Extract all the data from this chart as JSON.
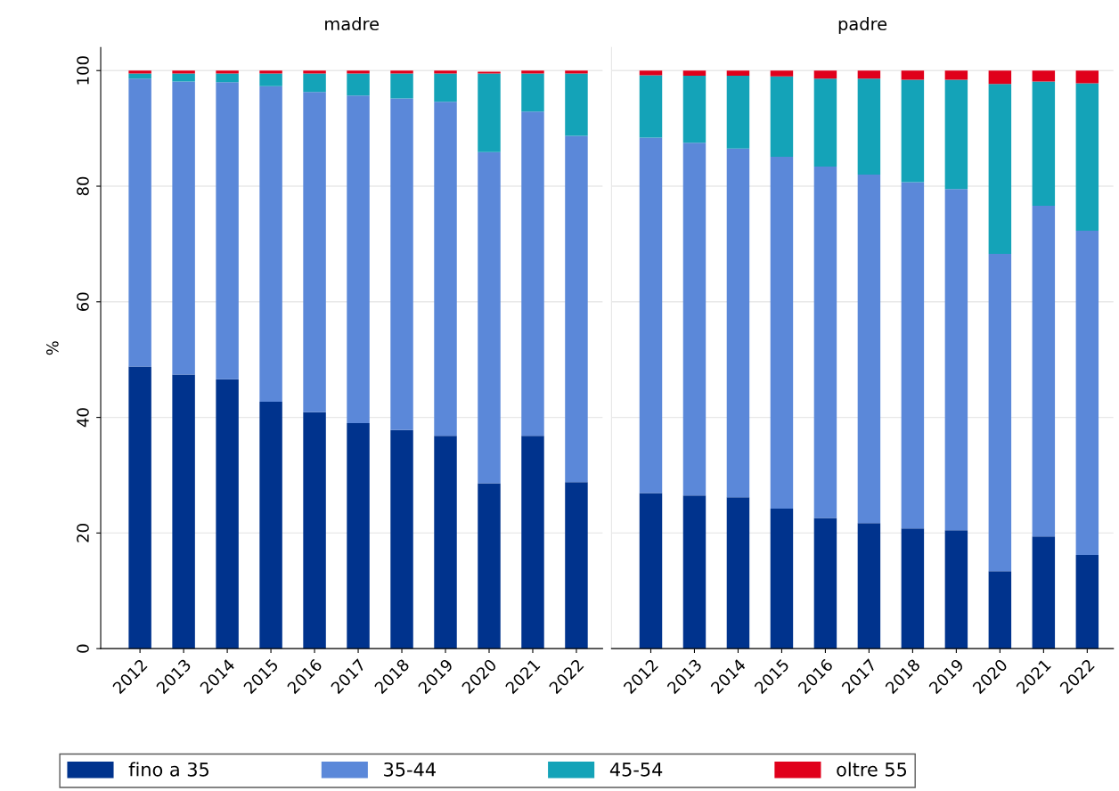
{
  "chart_data": [
    {
      "type": "bar",
      "title": "madre",
      "ylabel": "%",
      "stacked": true,
      "grid": "y",
      "legend": "bottom",
      "categories": [
        "2012",
        "2013",
        "2014",
        "2015",
        "2016",
        "2017",
        "2018",
        "2019",
        "2020",
        "2021",
        "2022"
      ],
      "ylim": [
        0,
        104
      ],
      "yticks": [
        0,
        20,
        40,
        60,
        80,
        100
      ],
      "series": [
        {
          "name": "fino a 35",
          "color": "#00338d",
          "values": [
            48.8,
            47.4,
            46.6,
            42.7,
            40.9,
            39.0,
            37.8,
            36.8,
            28.6,
            36.8,
            28.8
          ]
        },
        {
          "name": "35-44",
          "color": "#5b88d9",
          "values": [
            49.8,
            50.7,
            51.4,
            54.6,
            55.4,
            56.7,
            57.4,
            57.8,
            57.3,
            56.1,
            59.9
          ]
        },
        {
          "name": "45-54",
          "color": "#14a3b8",
          "values": [
            0.9,
            1.4,
            1.5,
            2.2,
            3.2,
            3.8,
            4.3,
            4.9,
            13.6,
            6.6,
            10.8
          ]
        },
        {
          "name": "oltre 55",
          "color": "#e0001b",
          "values": [
            0.5,
            0.5,
            0.5,
            0.5,
            0.5,
            0.5,
            0.5,
            0.5,
            0.3,
            0.5,
            0.5
          ]
        }
      ]
    },
    {
      "type": "bar",
      "title": "padre",
      "stacked": true,
      "grid": "y",
      "tick_labels": "x",
      "categories": [
        "2012",
        "2013",
        "2014",
        "2015",
        "2016",
        "2017",
        "2018",
        "2019",
        "2020",
        "2021",
        "2022"
      ],
      "ylim": [
        0,
        104
      ],
      "yticks": [
        0,
        20,
        40,
        60,
        80,
        100
      ],
      "series": [
        {
          "color": "#00338d",
          "values": [
            26.9,
            26.5,
            26.2,
            24.2,
            22.6,
            21.7,
            20.8,
            20.5,
            13.4,
            19.4,
            16.2
          ]
        },
        {
          "color": "#5b88d9",
          "values": [
            61.5,
            61.0,
            60.3,
            60.9,
            60.8,
            60.3,
            59.9,
            59.0,
            54.9,
            57.2,
            56.1
          ]
        },
        {
          "color": "#14a3b8",
          "values": [
            10.8,
            11.6,
            12.6,
            13.9,
            15.2,
            16.6,
            17.7,
            18.9,
            29.4,
            21.5,
            25.5
          ]
        },
        {
          "color": "#e0001b",
          "values": [
            0.8,
            0.9,
            0.9,
            1.0,
            1.4,
            1.4,
            1.6,
            1.6,
            2.3,
            1.9,
            2.2
          ]
        }
      ]
    }
  ]
}
